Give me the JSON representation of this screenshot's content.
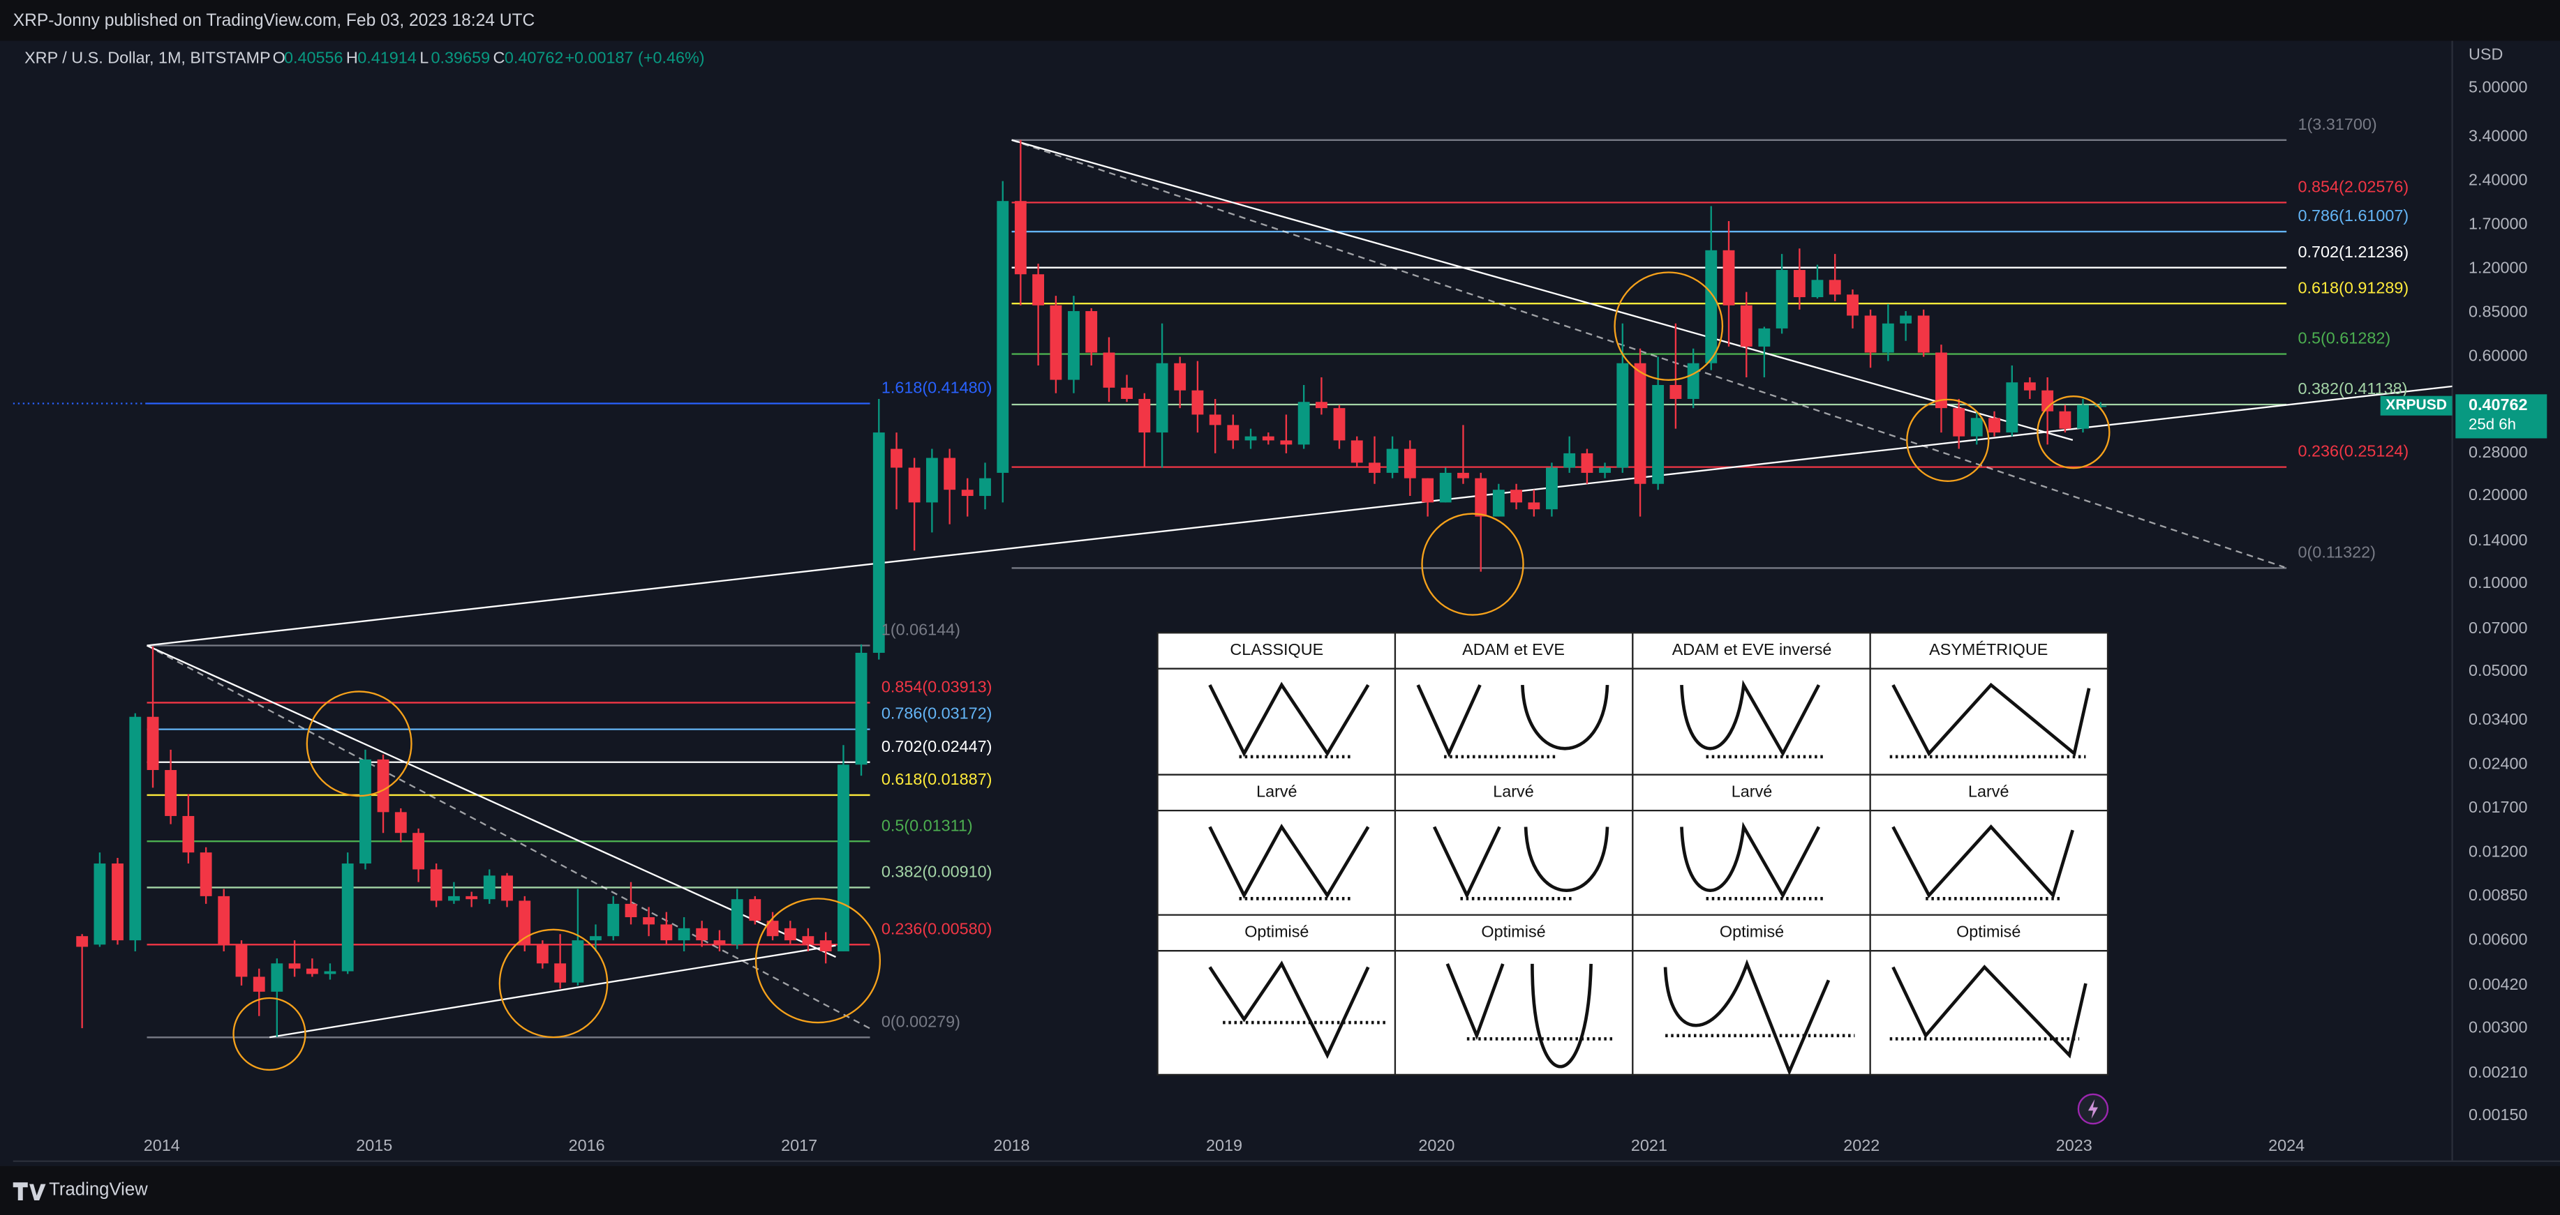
{
  "header": {
    "publisher": "XRP-Jonny published on TradingView.com, Feb 03, 2023 18:24 UTC"
  },
  "footer": {
    "brand": "TradingView"
  },
  "chart_data": {
    "type": "candlestick",
    "legend": {
      "symbol": "XRP / U.S. Dollar, 1M, BITSTAMP",
      "ohlc_labels": [
        "O",
        "H",
        "L",
        "C"
      ],
      "open": 0.40556,
      "high": 0.41914,
      "low": 0.39659,
      "close": 0.40762,
      "change": "+0.00187 (+0.46%)"
    },
    "y_unit": "USD",
    "symbol_tag": "XRPUSD",
    "countdown": "25d 6h",
    "colors": {
      "up": "#089981",
      "down": "#f23645",
      "tag": "#089981"
    },
    "log_scale": true,
    "grid": false,
    "xlim": [
      2013.3,
      2024.78
    ],
    "xticks": [
      2014,
      2015,
      2016,
      2017,
      2018,
      2019,
      2020,
      2021,
      2022,
      2023,
      2024
    ],
    "ylim": [
      0.00105,
      7.26
    ],
    "yticks": [
      {
        "value": 5,
        "label": "5.00000"
      },
      {
        "value": 3.4,
        "label": "3.40000"
      },
      {
        "value": 2.4,
        "label": "2.40000"
      },
      {
        "value": 1.7,
        "label": "1.70000"
      },
      {
        "value": 1.2,
        "label": "1.20000"
      },
      {
        "value": 0.85,
        "label": "0.85000"
      },
      {
        "value": 0.6,
        "label": "0.60000"
      },
      {
        "value": 0.28,
        "label": "0.28000"
      },
      {
        "value": 0.2,
        "label": "0.20000"
      },
      {
        "value": 0.14,
        "label": "0.14000"
      },
      {
        "value": 0.1,
        "label": "0.10000"
      },
      {
        "value": 0.07,
        "label": "0.07000"
      },
      {
        "value": 0.05,
        "label": "0.05000"
      },
      {
        "value": 0.034,
        "label": "0.03400"
      },
      {
        "value": 0.024,
        "label": "0.02400"
      },
      {
        "value": 0.017,
        "label": "0.01700"
      },
      {
        "value": 0.012,
        "label": "0.01200"
      },
      {
        "value": 0.0085,
        "label": "0.00850"
      },
      {
        "value": 0.006,
        "label": "0.00600"
      },
      {
        "value": 0.0042,
        "label": "0.00420"
      },
      {
        "value": 0.003,
        "label": "0.00300"
      },
      {
        "value": 0.0021,
        "label": "0.00210"
      },
      {
        "value": 0.0015,
        "label": "0.00150"
      }
    ],
    "x": [
      2013.625,
      2013.708,
      2013.792,
      2013.875,
      2013.958,
      2014.042,
      2014.125,
      2014.208,
      2014.292,
      2014.375,
      2014.458,
      2014.542,
      2014.625,
      2014.708,
      2014.792,
      2014.875,
      2014.958,
      2015.042,
      2015.125,
      2015.208,
      2015.292,
      2015.375,
      2015.458,
      2015.542,
      2015.625,
      2015.708,
      2015.792,
      2015.875,
      2015.958,
      2016.042,
      2016.125,
      2016.208,
      2016.292,
      2016.375,
      2016.458,
      2016.542,
      2016.625,
      2016.708,
      2016.792,
      2016.875,
      2016.958,
      2017.042,
      2017.125,
      2017.208,
      2017.292,
      2017.375,
      2017.458,
      2017.542,
      2017.625,
      2017.708,
      2017.792,
      2017.875,
      2017.958,
      2018.042,
      2018.125,
      2018.208,
      2018.292,
      2018.375,
      2018.458,
      2018.542,
      2018.625,
      2018.708,
      2018.792,
      2018.875,
      2018.958,
      2019.042,
      2019.125,
      2019.208,
      2019.292,
      2019.375,
      2019.458,
      2019.542,
      2019.625,
      2019.708,
      2019.792,
      2019.875,
      2019.958,
      2020.042,
      2020.125,
      2020.208,
      2020.292,
      2020.375,
      2020.458,
      2020.542,
      2020.625,
      2020.708,
      2020.792,
      2020.875,
      2020.958,
      2021.042,
      2021.125,
      2021.208,
      2021.292,
      2021.375,
      2021.458,
      2021.542,
      2021.625,
      2021.708,
      2021.792,
      2021.875,
      2021.958,
      2022.042,
      2022.125,
      2022.208,
      2022.292,
      2022.375,
      2022.458,
      2022.542,
      2022.625,
      2022.708,
      2022.792,
      2022.875,
      2022.958,
      2023.042,
      2023.125
    ],
    "open": [
      0.0062,
      0.0058,
      0.011,
      0.006,
      0.035,
      0.023,
      0.016,
      0.012,
      0.0085,
      0.0058,
      0.0045,
      0.004,
      0.005,
      0.0048,
      0.0046,
      0.0047,
      0.011,
      0.025,
      0.0165,
      0.014,
      0.0105,
      0.0082,
      0.0085,
      0.0083,
      0.01,
      0.0082,
      0.0058,
      0.005,
      0.0043,
      0.006,
      0.0062,
      0.008,
      0.0072,
      0.0068,
      0.006,
      0.0066,
      0.006,
      0.0058,
      0.0083,
      0.007,
      0.0066,
      0.0062,
      0.006,
      0.0055,
      0.024,
      0.058,
      0.29,
      0.25,
      0.19,
      0.27,
      0.21,
      0.2,
      0.24,
      2.05,
      1.15,
      0.9,
      0.5,
      0.86,
      0.62,
      0.47,
      0.43,
      0.33,
      0.57,
      0.46,
      0.38,
      0.35,
      0.31,
      0.32,
      0.31,
      0.3,
      0.42,
      0.4,
      0.31,
      0.26,
      0.24,
      0.29,
      0.23,
      0.19,
      0.24,
      0.23,
      0.17,
      0.21,
      0.19,
      0.18,
      0.25,
      0.28,
      0.24,
      0.25,
      0.57,
      0.22,
      0.48,
      0.43,
      0.57,
      1.39,
      0.9,
      0.65,
      0.75,
      1.19,
      0.96,
      1.1,
      0.98,
      0.83,
      0.62,
      0.78,
      0.83,
      0.62,
      0.4,
      0.32,
      0.37,
      0.33,
      0.49,
      0.46,
      0.39,
      0.34,
      0.40556
    ],
    "high": [
      0.0063,
      0.012,
      0.0115,
      0.036,
      0.061,
      0.027,
      0.019,
      0.0125,
      0.009,
      0.006,
      0.0048,
      0.0052,
      0.006,
      0.0052,
      0.005,
      0.012,
      0.027,
      0.026,
      0.017,
      0.0145,
      0.011,
      0.0095,
      0.0088,
      0.0105,
      0.0102,
      0.0085,
      0.006,
      0.0063,
      0.009,
      0.0068,
      0.0085,
      0.0095,
      0.0078,
      0.0075,
      0.0072,
      0.007,
      0.0065,
      0.009,
      0.0085,
      0.0075,
      0.007,
      0.0066,
      0.0064,
      0.028,
      0.062,
      0.43,
      0.33,
      0.27,
      0.29,
      0.29,
      0.23,
      0.26,
      2.4,
      3.317,
      1.25,
      0.97,
      0.97,
      0.88,
      0.7,
      0.52,
      0.45,
      0.78,
      0.6,
      0.58,
      0.43,
      0.38,
      0.34,
      0.33,
      0.38,
      0.48,
      0.51,
      0.41,
      0.32,
      0.32,
      0.32,
      0.31,
      0.23,
      0.25,
      0.35,
      0.24,
      0.22,
      0.22,
      0.21,
      0.26,
      0.32,
      0.29,
      0.26,
      0.78,
      0.64,
      0.6,
      0.78,
      0.64,
      1.97,
      1.75,
      1.0,
      0.76,
      1.35,
      1.41,
      1.24,
      1.35,
      1.02,
      0.87,
      0.91,
      0.86,
      0.87,
      0.66,
      0.43,
      0.39,
      0.39,
      0.56,
      0.51,
      0.51,
      0.41,
      0.43,
      0.41914
    ],
    "low": [
      0.003,
      0.0057,
      0.0058,
      0.0055,
      0.02,
      0.015,
      0.011,
      0.008,
      0.0055,
      0.0042,
      0.0033,
      0.0028,
      0.0045,
      0.0045,
      0.0044,
      0.0046,
      0.0105,
      0.014,
      0.013,
      0.0095,
      0.0078,
      0.008,
      0.0078,
      0.008,
      0.0078,
      0.0055,
      0.0048,
      0.0041,
      0.0042,
      0.0055,
      0.006,
      0.0068,
      0.0062,
      0.0058,
      0.0055,
      0.0057,
      0.0055,
      0.0056,
      0.0068,
      0.006,
      0.0058,
      0.0055,
      0.005,
      0.0055,
      0.022,
      0.055,
      0.18,
      0.13,
      0.15,
      0.16,
      0.17,
      0.18,
      0.19,
      0.9,
      0.56,
      0.45,
      0.45,
      0.56,
      0.42,
      0.42,
      0.25,
      0.25,
      0.4,
      0.33,
      0.28,
      0.29,
      0.29,
      0.3,
      0.28,
      0.29,
      0.38,
      0.29,
      0.25,
      0.22,
      0.23,
      0.2,
      0.17,
      0.19,
      0.22,
      0.11,
      0.17,
      0.18,
      0.17,
      0.17,
      0.24,
      0.22,
      0.23,
      0.24,
      0.17,
      0.21,
      0.34,
      0.4,
      0.54,
      0.65,
      0.51,
      0.51,
      0.72,
      0.87,
      0.95,
      0.93,
      0.75,
      0.55,
      0.58,
      0.68,
      0.6,
      0.33,
      0.29,
      0.3,
      0.32,
      0.32,
      0.43,
      0.3,
      0.33,
      0.33,
      0.39659
    ],
    "close": [
      0.0057,
      0.011,
      0.006,
      0.035,
      0.023,
      0.016,
      0.012,
      0.0085,
      0.0058,
      0.0045,
      0.004,
      0.005,
      0.0048,
      0.0046,
      0.0047,
      0.011,
      0.025,
      0.0165,
      0.014,
      0.0105,
      0.0082,
      0.0085,
      0.0083,
      0.01,
      0.0082,
      0.0058,
      0.005,
      0.0043,
      0.006,
      0.0062,
      0.008,
      0.0072,
      0.0068,
      0.006,
      0.0066,
      0.006,
      0.0058,
      0.0083,
      0.007,
      0.0062,
      0.006,
      0.0058,
      0.0055,
      0.024,
      0.058,
      0.33,
      0.25,
      0.19,
      0.27,
      0.21,
      0.2,
      0.23,
      2.05,
      1.15,
      0.9,
      0.5,
      0.86,
      0.62,
      0.47,
      0.43,
      0.33,
      0.57,
      0.46,
      0.38,
      0.35,
      0.31,
      0.32,
      0.31,
      0.3,
      0.42,
      0.4,
      0.31,
      0.26,
      0.24,
      0.29,
      0.23,
      0.19,
      0.24,
      0.23,
      0.17,
      0.21,
      0.19,
      0.18,
      0.25,
      0.28,
      0.24,
      0.25,
      0.57,
      0.22,
      0.48,
      0.43,
      0.57,
      1.39,
      0.9,
      0.65,
      0.75,
      1.19,
      0.96,
      1.1,
      0.98,
      0.83,
      0.62,
      0.78,
      0.83,
      0.62,
      0.4,
      0.32,
      0.37,
      0.33,
      0.49,
      0.46,
      0.39,
      0.34,
      0.41,
      0.40762
    ],
    "fibs": [
      {
        "x": [
          2013.93,
          2017.333
        ],
        "levels": [
          {
            "label": "1.618(0.41480)",
            "price": 0.4148,
            "color": "#2962ff",
            "extend_left": true
          },
          {
            "label": "1(0.06144)",
            "price": 0.06144,
            "color": "#787b86"
          },
          {
            "label": "0.854(0.03913)",
            "price": 0.03913,
            "color": "#f23645"
          },
          {
            "label": "0.786(0.03172)",
            "price": 0.03172,
            "color": "#64b5f6"
          },
          {
            "label": "0.702(0.02447)",
            "price": 0.02447,
            "color": "#ffffff"
          },
          {
            "label": "0.618(0.01887)",
            "price": 0.01887,
            "color": "#ffeb3b"
          },
          {
            "label": "0.5(0.01311)",
            "price": 0.01311,
            "color": "#4caf50"
          },
          {
            "label": "0.382(0.00910)",
            "price": 0.0091,
            "color": "#a5d6a7"
          },
          {
            "label": "0.236(0.00580)",
            "price": 0.0058,
            "color": "#f23645"
          },
          {
            "label": "0(0.00279)",
            "price": 0.00279,
            "color": "#787b86"
          }
        ]
      },
      {
        "x": [
          2018.0,
          2024.0
        ],
        "levels": [
          {
            "label": "1(3.31700)",
            "price": 3.317,
            "color": "#787b86"
          },
          {
            "label": "0.854(2.02576)",
            "price": 2.02576,
            "color": "#f23645"
          },
          {
            "label": "0.786(1.61007)",
            "price": 1.61007,
            "color": "#64b5f6"
          },
          {
            "label": "0.702(1.21236)",
            "price": 1.21236,
            "color": "#ffffff"
          },
          {
            "label": "0.618(0.91289)",
            "price": 0.91289,
            "color": "#ffeb3b"
          },
          {
            "label": "0.5(0.61282)",
            "price": 0.61282,
            "color": "#4caf50"
          },
          {
            "label": "0.382(0.41138)",
            "price": 0.41138,
            "color": "#a5d6a7"
          },
          {
            "label": "0.236(0.25124)",
            "price": 0.25124,
            "color": "#f23645"
          },
          {
            "label": "0(0.11322)",
            "price": 0.11322,
            "color": "#787b86"
          }
        ]
      }
    ],
    "trendlines": [
      {
        "x": [
          2013.93,
          2024.78
        ],
        "y": [
          0.06144,
          0.475
        ],
        "dashed": false
      },
      {
        "x": [
          2014.507,
          2017.172
        ],
        "y": [
          0.00279,
          0.00576
        ],
        "dashed": false
      },
      {
        "x": [
          2013.93,
          2017.172
        ],
        "y": [
          0.06144,
          0.00526
        ],
        "dashed": false
      },
      {
        "x": [
          2013.93,
          2017.349
        ],
        "y": [
          0.06144,
          0.00295
        ],
        "dashed": true
      },
      {
        "x": [
          2018.0,
          2022.994
        ],
        "y": [
          3.317,
          0.311
        ],
        "dashed": false
      },
      {
        "x": [
          2018.0,
          2023.99
        ],
        "y": [
          3.317,
          0.114
        ],
        "dashed": true
      }
    ]
  },
  "inset": {
    "rows": [
      [
        "CLASSIQUE",
        "ADAM et EVE",
        "ADAM et EVE inversé",
        "ASYMÉTRIQUE"
      ],
      [
        "Larvé",
        "Larvé",
        "Larvé",
        "Larvé"
      ],
      [
        "Optimisé",
        "Optimisé",
        "Optimisé",
        "Optimisé"
      ]
    ]
  }
}
